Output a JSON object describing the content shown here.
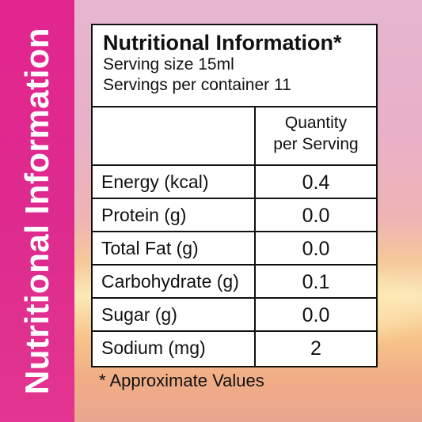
{
  "side_title": "Nutritional Information",
  "panel": {
    "title": "Nutritional Information*",
    "serving_size": "Serving size 15ml",
    "servings_per_container": "Servings per container 11",
    "column_header_line1": "Quantity",
    "column_header_line2": "per Serving",
    "rows": [
      {
        "label": "Energy (kcal)",
        "value": "0.4"
      },
      {
        "label": "Protein (g)",
        "value": "0.0"
      },
      {
        "label": "Total Fat (g)",
        "value": "0.0"
      },
      {
        "label": "Carbohydrate (g)",
        "value": "0.1"
      },
      {
        "label": "Sugar (g)",
        "value": "0.0"
      },
      {
        "label": "Sodium (mg)",
        "value": "2"
      }
    ]
  },
  "footnote": "* Approximate Values",
  "colors": {
    "side_band": "#e0288f",
    "border": "#111111"
  }
}
